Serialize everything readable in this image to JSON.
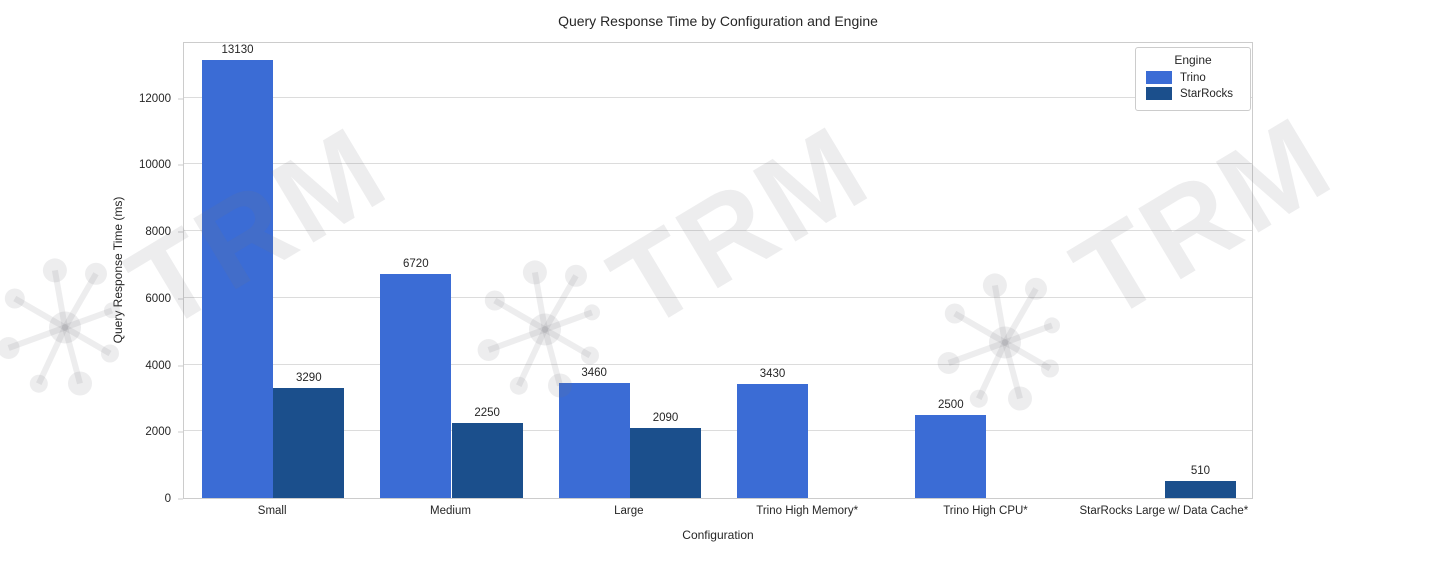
{
  "title": "Query Response Time by Configuration and Engine",
  "watermark": {
    "text": "TRM"
  },
  "legend": {
    "title": "Engine",
    "items": [
      {
        "label": "Trino",
        "color": "#3b6cd5"
      },
      {
        "label": "StarRocks",
        "color": "#1b4f8c"
      }
    ]
  },
  "chart_data": {
    "type": "bar",
    "title": "Query Response Time by Configuration and Engine",
    "xlabel": "Configuration",
    "ylabel": "Query Response Time (ms)",
    "categories": [
      "Small",
      "Medium",
      "Large",
      "Trino High Memory*",
      "Trino High CPU*",
      "StarRocks Large w/ Data Cache*"
    ],
    "series": [
      {
        "name": "Trino",
        "color": "#3b6cd5",
        "values": [
          13130,
          6720,
          3460,
          3430,
          2500,
          null
        ]
      },
      {
        "name": "StarRocks",
        "color": "#1b4f8c",
        "values": [
          3290,
          2250,
          2090,
          null,
          null,
          510
        ]
      }
    ],
    "bar_value_labels": true,
    "ylim": [
      0,
      13700
    ],
    "yticks": [
      0,
      2000,
      4000,
      6000,
      8000,
      10000,
      12000
    ],
    "grid": true,
    "legend_position": "upper right",
    "legend_title": "Engine"
  }
}
